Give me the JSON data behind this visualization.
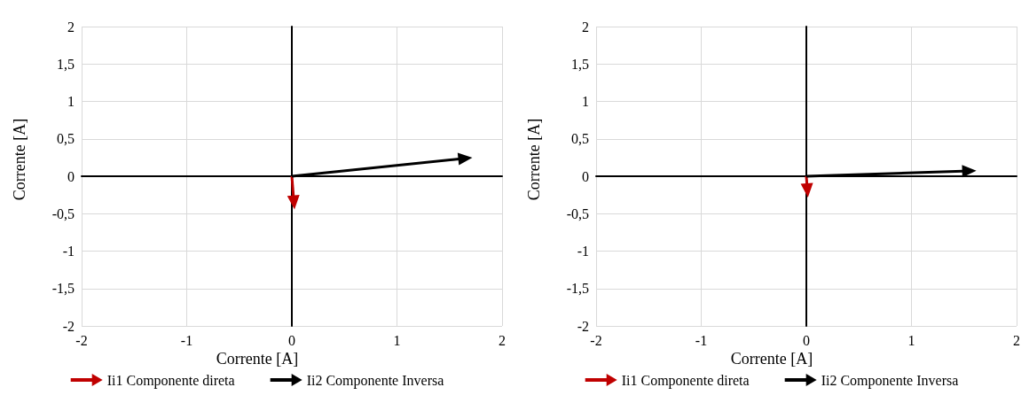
{
  "chart_data": [
    {
      "type": "line",
      "xlabel": "Corrente [A]",
      "ylabel": "Corrente [A]",
      "xlim": [
        -2,
        2
      ],
      "ylim": [
        -2,
        2
      ],
      "xticks": [
        -2,
        -1,
        0,
        1,
        2
      ],
      "yticks": [
        -2,
        {
          "value": -1.5,
          "label": "-1,5"
        },
        -1,
        {
          "value": -0.5,
          "label": "-0,5"
        },
        0,
        {
          "value": 0.5,
          "label": "0,5"
        },
        1,
        {
          "value": 1.5,
          "label": "1,5"
        },
        2
      ],
      "grid": true,
      "legend": "bottom",
      "series": [
        {
          "name": "Ii1 Componente direta",
          "color": "#c00000",
          "x": [
            0,
            0.02
          ],
          "values": [
            0,
            -0.35
          ]
        },
        {
          "name": "Ii2 Componente Inversa",
          "color": "#000000",
          "x": [
            0,
            1.65
          ],
          "values": [
            0,
            0.24
          ]
        }
      ]
    },
    {
      "type": "line",
      "xlabel": "Corrente [A]",
      "ylabel": "Corrente [A]",
      "xlim": [
        -2,
        2
      ],
      "ylim": [
        -2,
        2
      ],
      "xticks": [
        -2,
        -1,
        0,
        1,
        2
      ],
      "yticks": [
        -2,
        {
          "value": -1.5,
          "label": "-1,5"
        },
        -1,
        {
          "value": -0.5,
          "label": "-0,5"
        },
        0,
        {
          "value": 0.5,
          "label": "0,5"
        },
        1,
        {
          "value": 1.5,
          "label": "1,5"
        },
        2
      ],
      "grid": true,
      "legend": "bottom",
      "series": [
        {
          "name": "Ii1 Componente direta",
          "color": "#c00000",
          "x": [
            0,
            0.01
          ],
          "values": [
            0,
            -0.19
          ]
        },
        {
          "name": "Ii2 Componente Inversa",
          "color": "#000000",
          "x": [
            0,
            1.55
          ],
          "values": [
            0,
            0.07
          ]
        }
      ]
    }
  ]
}
